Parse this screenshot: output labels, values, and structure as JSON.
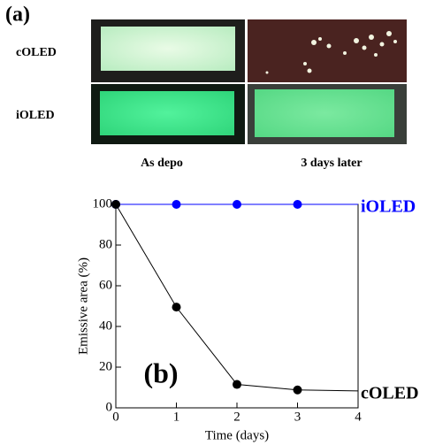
{
  "panel_a": {
    "label": "(a)",
    "rows": [
      "cOLED",
      "iOLED"
    ],
    "columns": [
      "As depo",
      "3 days later"
    ]
  },
  "chart_data": {
    "type": "line",
    "panel_label": "(b)",
    "x_label": "Time (days)",
    "y_label": "Emissive area (%)",
    "xlim": [
      0,
      4
    ],
    "ylim": [
      0,
      100
    ],
    "xticks": [
      0,
      1,
      2,
      3,
      4
    ],
    "yticks": [
      0,
      20,
      40,
      60,
      80,
      100
    ],
    "series": [
      {
        "name": "iOLED",
        "color": "#0000ff",
        "x": [
          0,
          1,
          2,
          3,
          4
        ],
        "values": [
          100,
          100,
          100,
          100,
          100
        ]
      },
      {
        "name": "cOLED",
        "color": "#000000",
        "x": [
          0,
          1,
          2,
          3,
          4
        ],
        "values": [
          100,
          49.5,
          11.5,
          8.8,
          8.3
        ]
      }
    ]
  }
}
